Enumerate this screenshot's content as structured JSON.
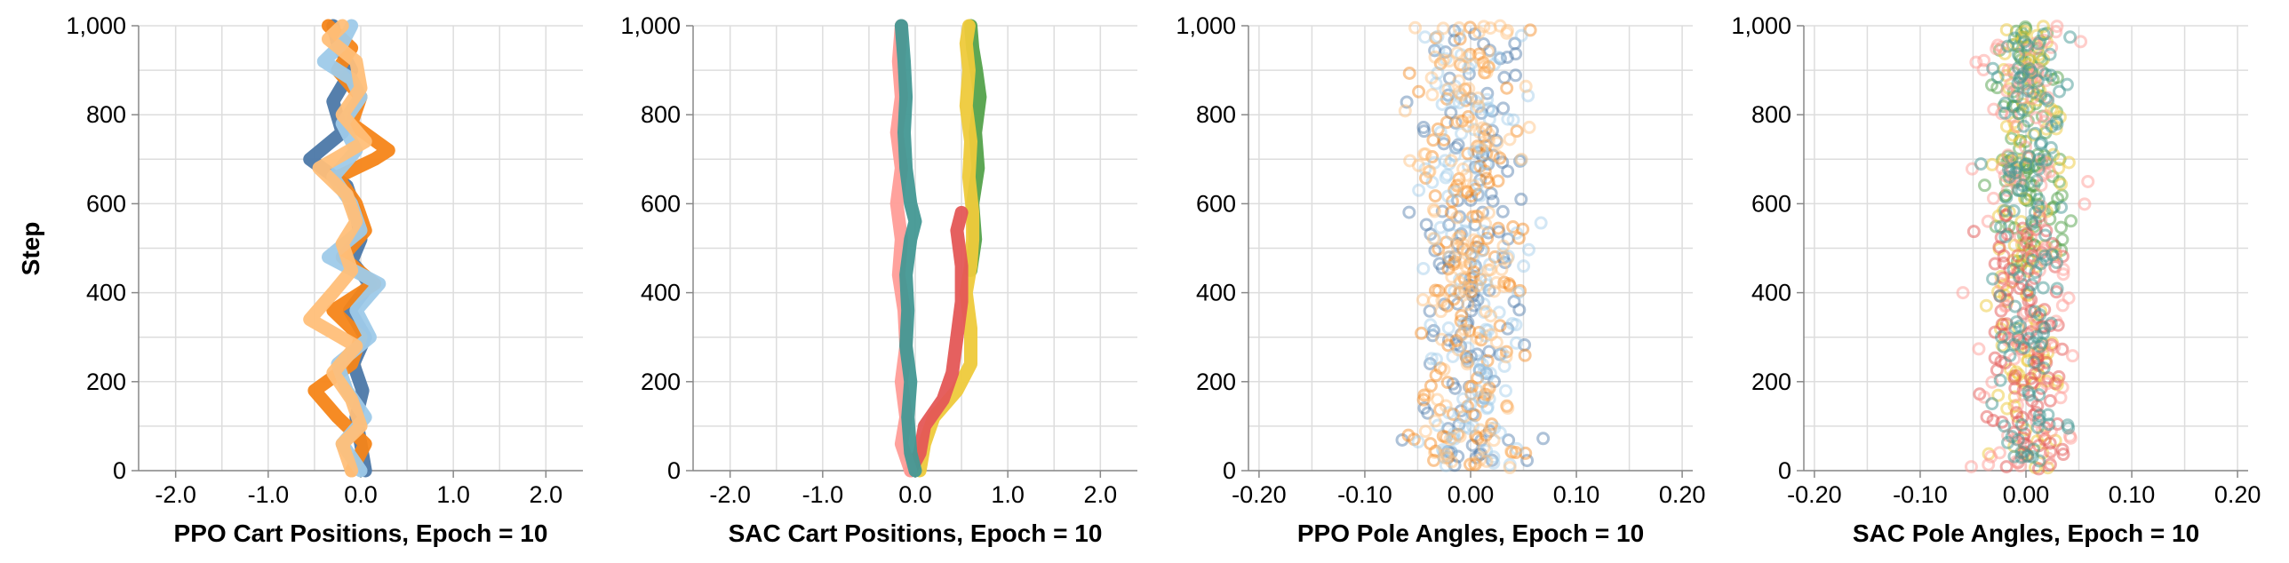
{
  "y_axis_title": "Step",
  "chart_data": [
    {
      "type": "line",
      "xlabel": "PPO Cart Positions, Epoch = 10",
      "ylabel": "Step",
      "xlim": [
        -2.4,
        2.4
      ],
      "ylim": [
        0,
        1000
      ],
      "x_ticks": [
        "-2.0",
        "-1.0",
        "0.0",
        "1.0",
        "2.0"
      ],
      "x_tick_values": [
        -2,
        -1,
        0,
        1,
        2
      ],
      "y_ticks": [
        "0",
        "200",
        "400",
        "600",
        "800",
        "1,000"
      ],
      "y_tick_values": [
        0,
        200,
        400,
        600,
        800,
        1000
      ],
      "grid": true,
      "series": [
        {
          "color": "#4c78a8",
          "points": [
            [
              0.05,
              0
            ],
            [
              0.0,
              60
            ],
            [
              -0.05,
              120
            ],
            [
              0.02,
              180
            ],
            [
              -0.08,
              240
            ],
            [
              0.05,
              300
            ],
            [
              -0.12,
              360
            ],
            [
              0.1,
              420
            ],
            [
              -0.1,
              470
            ],
            [
              0.0,
              520
            ],
            [
              -0.05,
              580
            ],
            [
              -0.15,
              640
            ],
            [
              -0.55,
              700
            ],
            [
              -0.2,
              760
            ],
            [
              -0.3,
              830
            ],
            [
              -0.1,
              900
            ],
            [
              -0.25,
              960
            ],
            [
              -0.3,
              1000
            ]
          ]
        },
        {
          "color": "#f58518",
          "points": [
            [
              -0.1,
              0
            ],
            [
              0.05,
              60
            ],
            [
              -0.25,
              120
            ],
            [
              -0.5,
              180
            ],
            [
              -0.1,
              240
            ],
            [
              0.0,
              300
            ],
            [
              -0.3,
              360
            ],
            [
              0.15,
              420
            ],
            [
              -0.2,
              480
            ],
            [
              0.05,
              540
            ],
            [
              -0.05,
              600
            ],
            [
              -0.25,
              660
            ],
            [
              0.15,
              700
            ],
            [
              0.3,
              720
            ],
            [
              -0.1,
              780
            ],
            [
              0.0,
              840
            ],
            [
              -0.25,
              900
            ],
            [
              -0.1,
              950
            ],
            [
              -0.35,
              1000
            ]
          ]
        },
        {
          "color": "#9ecae9",
          "points": [
            [
              0.0,
              0
            ],
            [
              -0.2,
              60
            ],
            [
              0.05,
              120
            ],
            [
              -0.15,
              180
            ],
            [
              -0.25,
              240
            ],
            [
              0.1,
              300
            ],
            [
              -0.05,
              360
            ],
            [
              0.2,
              420
            ],
            [
              -0.35,
              480
            ],
            [
              0.0,
              540
            ],
            [
              -0.1,
              600
            ],
            [
              -0.3,
              660
            ],
            [
              -0.05,
              720
            ],
            [
              -0.2,
              780
            ],
            [
              0.0,
              840
            ],
            [
              -0.1,
              880
            ],
            [
              -0.4,
              920
            ],
            [
              -0.2,
              960
            ],
            [
              -0.1,
              1000
            ]
          ]
        },
        {
          "color": "#ffbf79",
          "points": [
            [
              -0.1,
              0
            ],
            [
              -0.2,
              60
            ],
            [
              0.0,
              100
            ],
            [
              -0.1,
              160
            ],
            [
              -0.3,
              220
            ],
            [
              -0.05,
              280
            ],
            [
              -0.55,
              340
            ],
            [
              -0.3,
              400
            ],
            [
              -0.1,
              450
            ],
            [
              -0.2,
              510
            ],
            [
              -0.05,
              560
            ],
            [
              -0.15,
              620
            ],
            [
              -0.45,
              680
            ],
            [
              0.05,
              740
            ],
            [
              -0.2,
              800
            ],
            [
              0.0,
              860
            ],
            [
              -0.05,
              920
            ],
            [
              -0.35,
              970
            ],
            [
              -0.2,
              1000
            ]
          ]
        }
      ]
    },
    {
      "type": "line",
      "xlabel": "SAC Cart Positions, Epoch = 10",
      "ylabel": "",
      "xlim": [
        -2.4,
        2.4
      ],
      "ylim": [
        0,
        1000
      ],
      "x_ticks": [
        "-2.0",
        "-1.0",
        "0.0",
        "1.0",
        "2.0"
      ],
      "x_tick_values": [
        -2,
        -1,
        0,
        1,
        2
      ],
      "y_ticks": [
        "0",
        "200",
        "400",
        "600",
        "800",
        "1,000"
      ],
      "y_tick_values": [
        0,
        200,
        400,
        600,
        800,
        1000
      ],
      "grid": true,
      "series": [
        {
          "color": "#54a24b",
          "points": [
            [
              0.6,
              450
            ],
            [
              0.65,
              520
            ],
            [
              0.62,
              600
            ],
            [
              0.68,
              680
            ],
            [
              0.65,
              760
            ],
            [
              0.7,
              840
            ],
            [
              0.66,
              900
            ],
            [
              0.62,
              950
            ],
            [
              0.6,
              1000
            ]
          ]
        },
        {
          "color": "#eeca3b",
          "points": [
            [
              0.05,
              0
            ],
            [
              0.1,
              60
            ],
            [
              0.2,
              120
            ],
            [
              0.45,
              180
            ],
            [
              0.6,
              240
            ],
            [
              0.6,
              320
            ],
            [
              0.55,
              400
            ],
            [
              0.6,
              460
            ],
            [
              0.62,
              520
            ],
            [
              0.62,
              580
            ],
            [
              0.58,
              660
            ],
            [
              0.6,
              740
            ],
            [
              0.55,
              820
            ],
            [
              0.58,
              900
            ],
            [
              0.55,
              960
            ],
            [
              0.58,
              1000
            ]
          ]
        },
        {
          "color": "#e45756",
          "points": [
            [
              -0.05,
              0
            ],
            [
              0.05,
              40
            ],
            [
              0.1,
              100
            ],
            [
              0.3,
              160
            ],
            [
              0.4,
              220
            ],
            [
              0.45,
              300
            ],
            [
              0.5,
              380
            ],
            [
              0.5,
              460
            ],
            [
              0.45,
              540
            ],
            [
              0.5,
              580
            ]
          ]
        },
        {
          "color": "#ff9d98",
          "points": [
            [
              -0.05,
              0
            ],
            [
              -0.15,
              60
            ],
            [
              -0.1,
              120
            ],
            [
              -0.15,
              200
            ],
            [
              -0.1,
              280
            ],
            [
              -0.12,
              360
            ],
            [
              -0.18,
              440
            ],
            [
              -0.15,
              520
            ],
            [
              -0.2,
              600
            ],
            [
              -0.15,
              680
            ],
            [
              -0.2,
              760
            ],
            [
              -0.15,
              840
            ],
            [
              -0.18,
              920
            ],
            [
              -0.15,
              1000
            ]
          ]
        },
        {
          "color": "#439894",
          "points": [
            [
              0.0,
              0
            ],
            [
              -0.05,
              40
            ],
            [
              -0.08,
              120
            ],
            [
              -0.05,
              200
            ],
            [
              -0.1,
              280
            ],
            [
              -0.08,
              360
            ],
            [
              -0.1,
              440
            ],
            [
              -0.05,
              520
            ],
            [
              0.0,
              560
            ],
            [
              -0.05,
              600
            ],
            [
              -0.1,
              680
            ],
            [
              -0.12,
              760
            ],
            [
              -0.1,
              840
            ],
            [
              -0.12,
              920
            ],
            [
              -0.15,
              1000
            ]
          ]
        }
      ]
    },
    {
      "type": "scatter",
      "xlabel": "PPO Pole Angles, Epoch = 10",
      "ylabel": "",
      "xlim": [
        -0.21,
        0.21
      ],
      "ylim": [
        0,
        1000
      ],
      "x_ticks": [
        "-0.20",
        "-0.10",
        "0.00",
        "0.10",
        "0.20"
      ],
      "x_tick_values": [
        -0.2,
        -0.1,
        0.0,
        0.1,
        0.2
      ],
      "y_ticks": [
        "0",
        "200",
        "400",
        "600",
        "800",
        "1,000"
      ],
      "y_tick_values": [
        0,
        200,
        400,
        600,
        800,
        1000
      ],
      "grid": true,
      "point_opacity": 0.45,
      "series": [
        {
          "color": "#4c78a8",
          "spread": 0.06,
          "count": 130,
          "seed": 11
        },
        {
          "color": "#f58518",
          "spread": 0.065,
          "count": 130,
          "seed": 23
        },
        {
          "color": "#9ecae9",
          "spread": 0.06,
          "count": 130,
          "seed": 37
        },
        {
          "color": "#ffbf79",
          "spread": 0.06,
          "count": 130,
          "seed": 51
        }
      ]
    },
    {
      "type": "scatter",
      "xlabel": "SAC Pole Angles, Epoch = 10",
      "ylabel": "",
      "xlim": [
        -0.21,
        0.21
      ],
      "ylim": [
        0,
        1000
      ],
      "x_ticks": [
        "-0.20",
        "-0.10",
        "0.00",
        "0.10",
        "0.20"
      ],
      "x_tick_values": [
        -0.2,
        -0.1,
        0.0,
        0.1,
        0.2
      ],
      "y_ticks": [
        "0",
        "200",
        "400",
        "600",
        "800",
        "1,000"
      ],
      "y_tick_values": [
        0,
        200,
        400,
        600,
        800,
        1000
      ],
      "grid": true,
      "point_opacity": 0.5,
      "series": [
        {
          "color": "#54a24b",
          "spread": 0.04,
          "count": 110,
          "seed": 61,
          "ymin": 450
        },
        {
          "color": "#eeca3b",
          "spread": 0.045,
          "count": 120,
          "seed": 73
        },
        {
          "color": "#e45756",
          "spread": 0.05,
          "count": 110,
          "seed": 89,
          "ymax": 580
        },
        {
          "color": "#ff9d98",
          "spread": 0.06,
          "count": 110,
          "seed": 97
        },
        {
          "color": "#439894",
          "spread": 0.045,
          "count": 130,
          "seed": 103
        }
      ]
    }
  ]
}
